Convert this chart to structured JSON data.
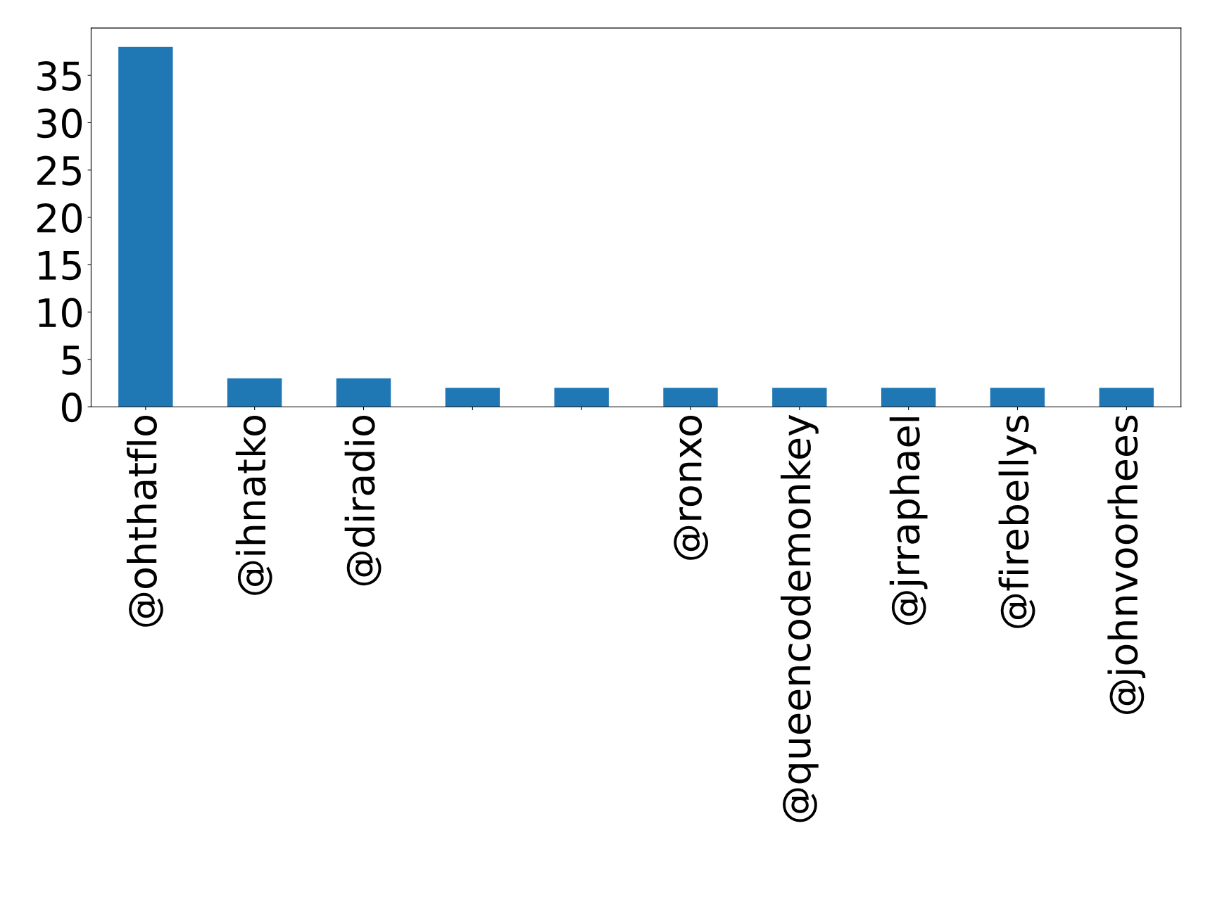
{
  "chart_data": {
    "type": "bar",
    "categories": [
      "@ohthatflo",
      "@ihnatko",
      "@diradio",
      null,
      null,
      "@ronxo",
      "@queencodemonkey",
      "@jrraphael",
      "@firebellys",
      "@johnvoorhees"
    ],
    "values": [
      38,
      3,
      3,
      2,
      2,
      2,
      2,
      2,
      2,
      2
    ],
    "color": "#1f77b4",
    "ylim": [
      0,
      40
    ],
    "yticks": [
      0,
      5,
      10,
      15,
      20,
      25,
      30,
      35
    ],
    "grid": false,
    "legend": false
  }
}
